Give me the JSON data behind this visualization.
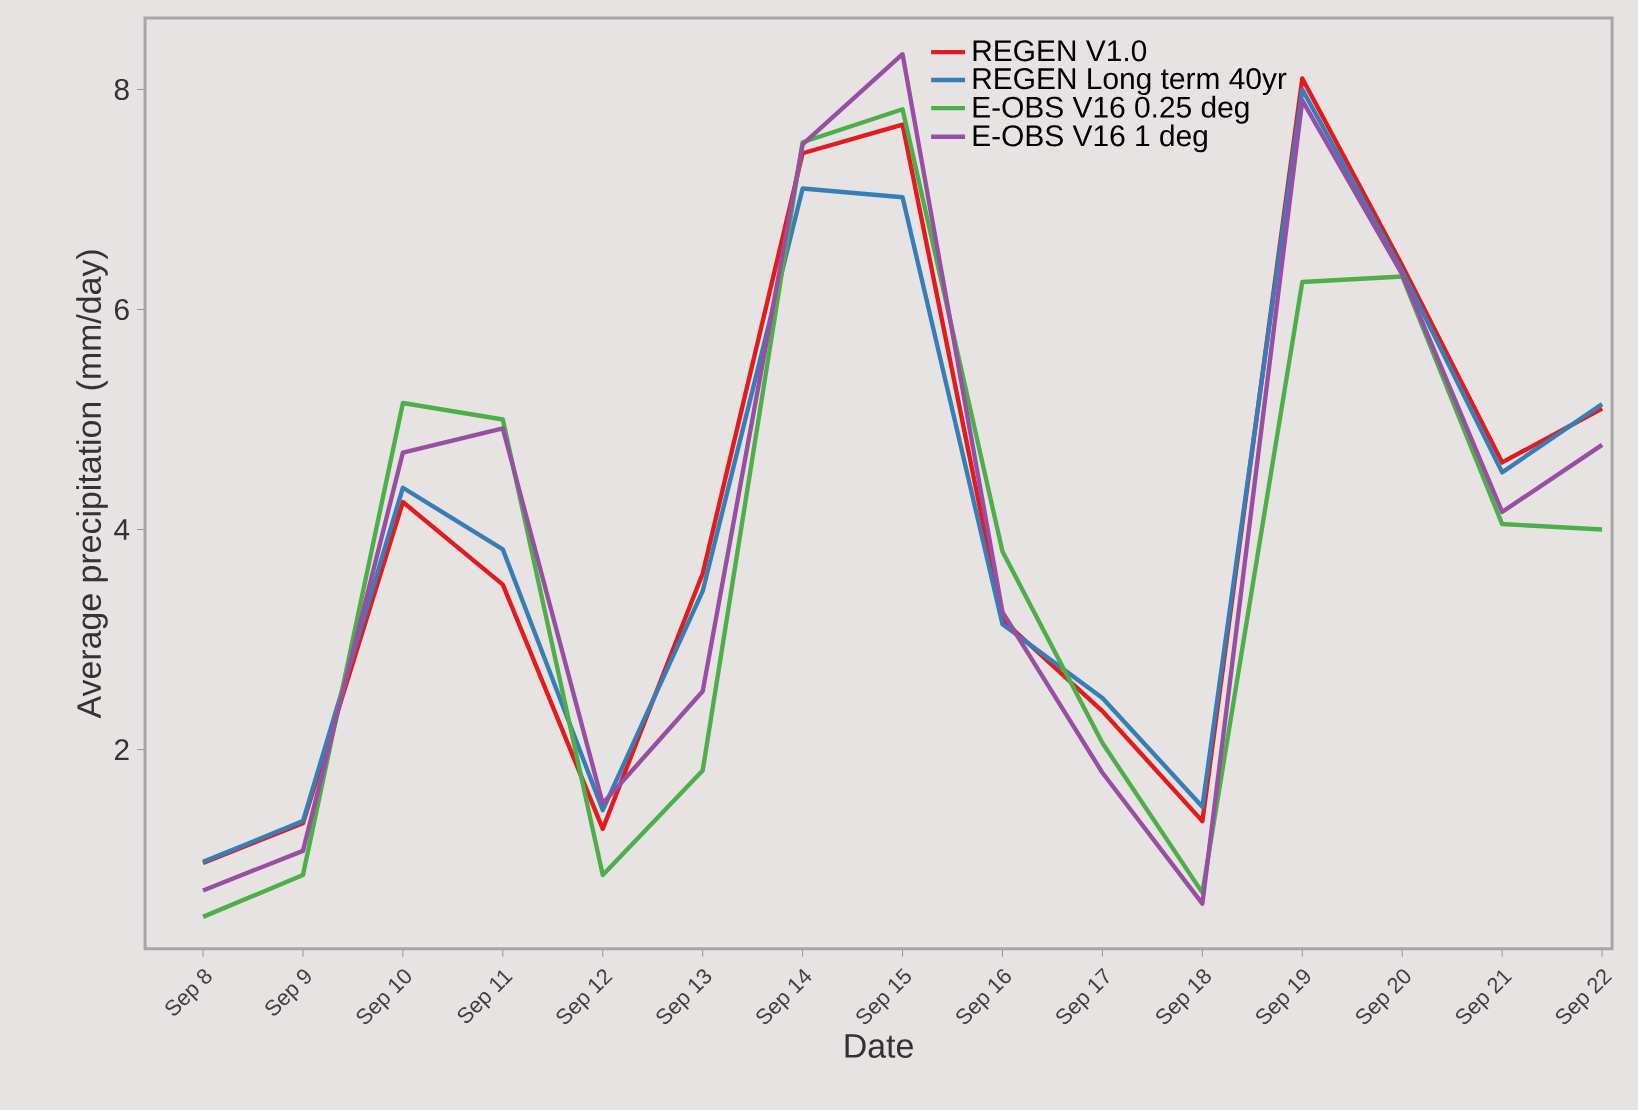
{
  "chart_data": {
    "type": "line",
    "xlabel": "Date",
    "ylabel": "Average precipitation (mm/day)",
    "categories": [
      "Sep 8",
      "Sep 9",
      "Sep 10",
      "Sep 11",
      "Sep 12",
      "Sep 13",
      "Sep 14",
      "Sep 15",
      "Sep 16",
      "Sep 17",
      "Sep 18",
      "Sep 19",
      "Sep 20",
      "Sep 21",
      "Sep 22"
    ],
    "series": [
      {
        "name": "REGEN V1.0",
        "color": "#e41a1c",
        "values": [
          0.97,
          1.33,
          4.25,
          3.5,
          1.28,
          3.6,
          7.42,
          7.68,
          3.18,
          2.35,
          1.35,
          8.1,
          6.4,
          4.61,
          5.1
        ]
      },
      {
        "name": "REGEN Long term 40yr",
        "color": "#377eb8",
        "values": [
          0.98,
          1.35,
          4.38,
          3.82,
          1.45,
          3.44,
          7.1,
          7.02,
          3.14,
          2.47,
          1.48,
          8.0,
          6.35,
          4.52,
          5.14
        ]
      },
      {
        "name": "E-OBS V16 0.25 deg",
        "color": "#4daf4a",
        "values": [
          0.48,
          0.86,
          5.15,
          5.0,
          0.86,
          1.81,
          7.52,
          7.82,
          3.8,
          2.06,
          0.7,
          6.25,
          6.3,
          4.05,
          4.0
        ]
      },
      {
        "name": "E-OBS V16 1 deg",
        "color": "#984ea3",
        "values": [
          0.72,
          1.08,
          4.7,
          4.92,
          1.51,
          2.53,
          7.5,
          8.32,
          3.25,
          1.79,
          0.6,
          7.9,
          6.32,
          4.16,
          4.77
        ]
      }
    ],
    "ylim": [
      0.19,
      8.65
    ],
    "yticks": [
      2,
      4,
      6,
      8
    ],
    "legend": "top right",
    "grid": false,
    "marker": "none",
    "line_style": "solid"
  }
}
